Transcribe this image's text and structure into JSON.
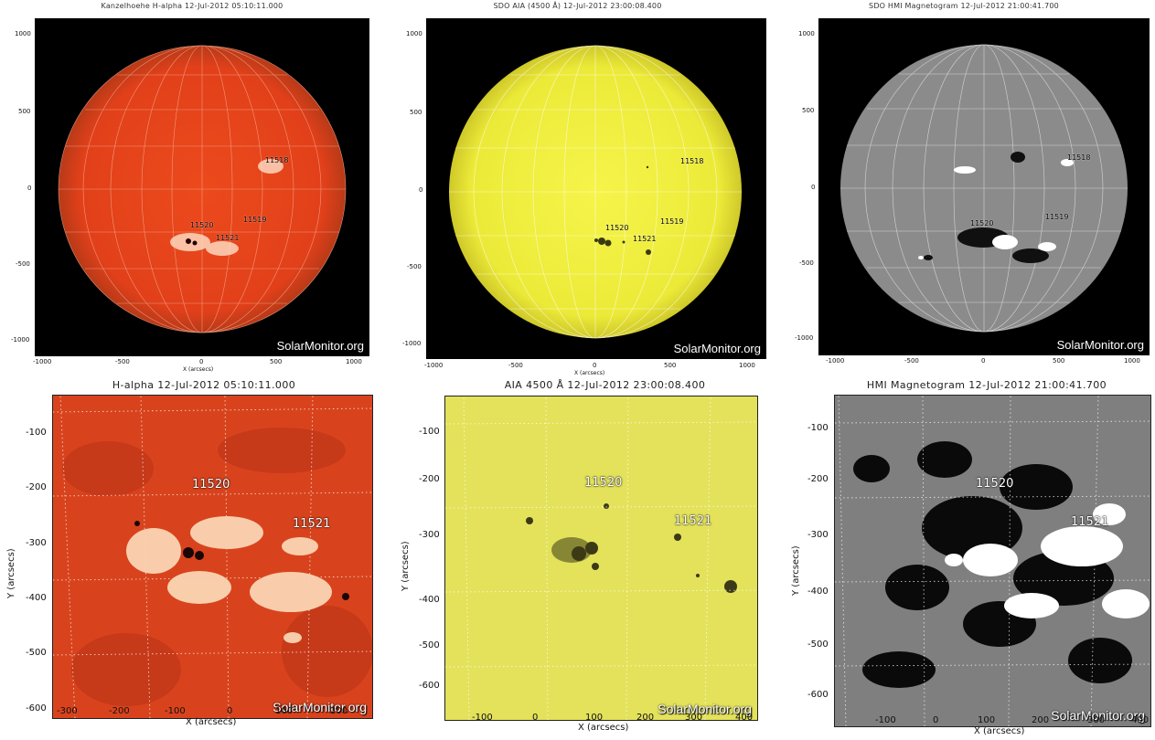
{
  "watermark": "SolarMonitor.org",
  "x_axis_label": "X (arcsecs)",
  "x_axis_label_small": "X (arcsecs)",
  "y_axis_label": "Y (arcsecs)",
  "top_panels": [
    {
      "title": "Kanzelhoehe H-alpha 12-Jul-2012 05:10:11.000",
      "disk_color": "#e8431a",
      "sky_color": "#000000",
      "regions": [
        "11518",
        "11520",
        "11519",
        "11521"
      ]
    },
    {
      "title": "SDO AIA (4500 Å) 12-Jul-2012 23:00:08.400",
      "disk_color": "#f3f140",
      "sky_color": "#000000",
      "regions": [
        "11518",
        "11520",
        "11519",
        "11521"
      ]
    },
    {
      "title": "SDO HMI Magnetogram 12-Jul-2012 21:00:41.700",
      "disk_color": "#8a8a8a",
      "sky_color": "#000000",
      "regions": [
        "11518",
        "11520",
        "11519"
      ]
    }
  ],
  "top_ticks": {
    "x": [
      "-1000",
      "-500",
      "0",
      "500",
      "1000"
    ],
    "y": [
      "1000",
      "500",
      "0",
      "-500",
      "-1000"
    ]
  },
  "bottom_panels": [
    {
      "title": "H-alpha 12-Jul-2012 05:10:11.000",
      "bg_color": "#d9451e",
      "xticks": [
        "-300",
        "-200",
        "-100",
        "0",
        "100",
        "200"
      ],
      "yticks": [
        "-100",
        "-200",
        "-300",
        "-400",
        "-500",
        "-600"
      ],
      "regions": [
        "11520",
        "11521"
      ]
    },
    {
      "title": "AIA 4500 Å 12-Jul-2012 23:00:08.400",
      "bg_color": "#e4e35a",
      "xticks": [
        "-100",
        "0",
        "100",
        "200",
        "300",
        "400"
      ],
      "yticks": [
        "-100",
        "-200",
        "-300",
        "-400",
        "-500",
        "-600"
      ],
      "regions": [
        "11520",
        "11521"
      ]
    },
    {
      "title": "HMI Magnetogram 12-Jul-2012 21:00:41.700",
      "bg_color": "#7e7e7e",
      "xticks": [
        "-100",
        "0",
        "100",
        "200",
        "300",
        "400"
      ],
      "yticks": [
        "-100",
        "-200",
        "-300",
        "-400",
        "-500",
        "-600"
      ],
      "regions": [
        "11520",
        "11521"
      ]
    }
  ]
}
